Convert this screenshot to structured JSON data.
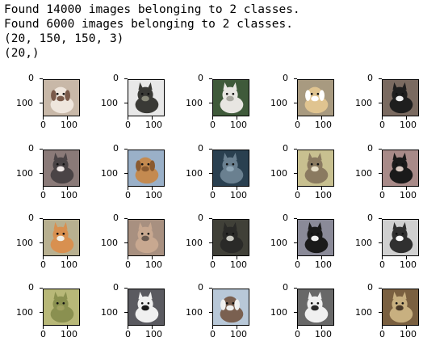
{
  "output_lines": [
    "Found 14000 images belonging to 2 classes.",
    "Found 6000 images belonging to 2 classes.",
    "(20, 150, 150, 3)",
    "(20,)"
  ],
  "axis": {
    "y_ticks": [
      "0",
      "100"
    ],
    "x_ticks": [
      "0",
      "100"
    ]
  },
  "images": [
    {
      "subject": "dog",
      "bg": "#c8b8a8",
      "fg": "#efe6dd",
      "accent": "#7a5a4a"
    },
    {
      "subject": "cat",
      "bg": "#e8e8e8",
      "fg": "#3a3a36",
      "accent": "#8a8a7a"
    },
    {
      "subject": "cat",
      "bg": "#3f5a3a",
      "fg": "#e8e6e2",
      "accent": "#a8a8a0"
    },
    {
      "subject": "dog",
      "bg": "#a89a80",
      "fg": "#e0c490",
      "accent": "#ffffff"
    },
    {
      "subject": "cat",
      "bg": "#7a6a60",
      "fg": "#1e1e1e",
      "accent": "#f2f2f2"
    },
    {
      "subject": "cat",
      "bg": "#8a7a78",
      "fg": "#4a4446",
      "accent": "#f0e8e6"
    },
    {
      "subject": "dog",
      "bg": "#9ab0c8",
      "fg": "#c48a50",
      "accent": "#8a5a30"
    },
    {
      "subject": "cat",
      "bg": "#2a4050",
      "fg": "#6a8090",
      "accent": "#90a8b8"
    },
    {
      "subject": "cat",
      "bg": "#c8c090",
      "fg": "#8a7a60",
      "accent": "#e8e0c8"
    },
    {
      "subject": "cat",
      "bg": "#a88a88",
      "fg": "#1a1a1a",
      "accent": "#d8c8c0"
    },
    {
      "subject": "cat",
      "bg": "#b8b090",
      "fg": "#d89050",
      "accent": "#f0f0e8"
    },
    {
      "subject": "cat",
      "bg": "#a89080",
      "fg": "#c8a890",
      "accent": "#6a5a50"
    },
    {
      "subject": "cat",
      "bg": "#404038",
      "fg": "#2a2a28",
      "accent": "#c8c8c0"
    },
    {
      "subject": "cat",
      "bg": "#8a8a98",
      "fg": "#1a1a1a",
      "accent": "#f0f0f0"
    },
    {
      "subject": "cat",
      "bg": "#d0d0d0",
      "fg": "#303030",
      "accent": "#ffffff"
    },
    {
      "subject": "cat",
      "bg": "#b8b878",
      "fg": "#8a9050",
      "accent": "#a0a060"
    },
    {
      "subject": "cat",
      "bg": "#5a5a60",
      "fg": "#f0f0f0",
      "accent": "#1a1a1a"
    },
    {
      "subject": "dog",
      "bg": "#b8c8d8",
      "fg": "#7a6050",
      "accent": "#f0f0f0"
    },
    {
      "subject": "cat",
      "bg": "#686868",
      "fg": "#f0f0f0",
      "accent": "#2a2a2a"
    },
    {
      "subject": "cat",
      "bg": "#7a6040",
      "fg": "#c8b080",
      "accent": "#4a3a28"
    }
  ]
}
